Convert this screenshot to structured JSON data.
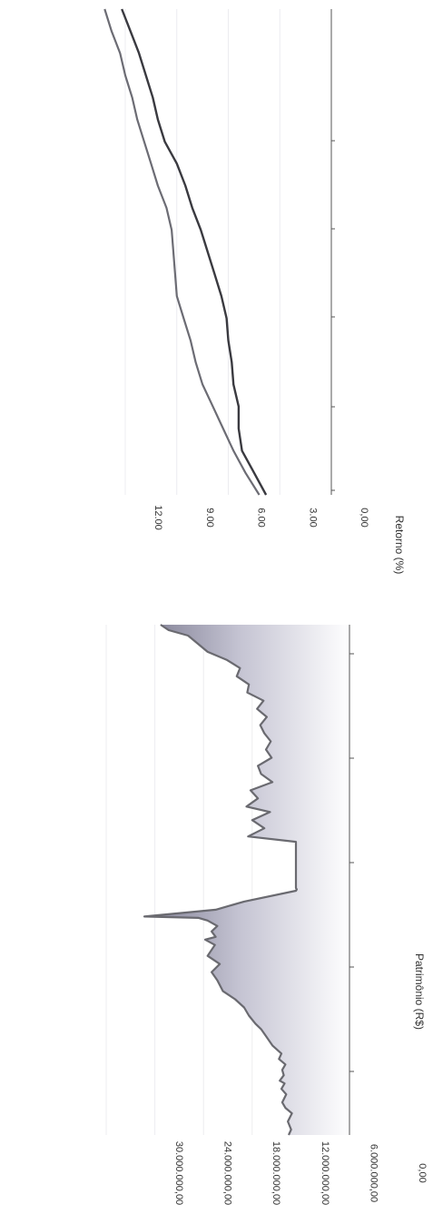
{
  "chart_data": [
    {
      "type": "area",
      "ylabel": "Patrimônio (R$)",
      "ylim": [
        0,
        30000000
      ],
      "yticks": [
        "0,00",
        "6.000.000,00",
        "12.000.000,00",
        "18.000.000,00",
        "24.000.000,00",
        "30.000.000,00"
      ],
      "ytick_values": [
        0,
        6000000,
        12000000,
        18000000,
        24000000,
        30000000
      ],
      "grid": true,
      "series": [
        {
          "x": [
            0,
            0.2,
            0.5,
            0.8,
            1.0,
            1.2,
            1.5,
            1.7,
            1.9,
            2.0,
            2.2,
            2.4,
            2.6,
            2.8,
            3.0,
            3.3,
            3.6,
            3.9,
            4.1,
            4.4,
            4.7,
            5.0,
            5.3,
            5.7,
            6.0,
            6.3,
            6.6,
            7.0,
            7.2,
            7.3,
            7.5,
            7.7,
            7.9,
            8.0,
            8.05,
            8.3,
            8.6,
            9.0,
            9.05,
            9.1,
            9.3,
            9.6,
            9.8,
            10.0,
            10.3,
            10.6,
            10.8,
            11.0,
            11.3,
            11.6,
            11.9,
            12.1,
            12.4,
            12.7,
            13.0,
            13.3,
            13.6,
            13.9,
            14.2,
            14.5,
            14.8,
            15.1,
            15.4,
            15.7,
            16.0,
            16.3,
            16.6,
            16.9,
            17.2,
            17.5,
            17.8,
            18.1,
            18.4,
            18.6,
            18.8
          ],
          "y": [
            7.5,
            7.2,
            7.6,
            7.1,
            7.9,
            8.3,
            7.8,
            8.4,
            8.0,
            8.6,
            8.1,
            8.3,
            7.9,
            8.7,
            8.4,
            9.5,
            10.2,
            10.9,
            11.6,
            12.4,
            13.0,
            14.1,
            15.6,
            16.3,
            17.0,
            16.0,
            17.5,
            16.6,
            17.8,
            16.5,
            17.0,
            16.3,
            17.5,
            18.6,
            25.3,
            16.5,
            13.0,
            6.6,
            6.5,
            6.6,
            6.6,
            6.6,
            6.6,
            6.6,
            6.6,
            6.6,
            6.6,
            12.5,
            10.5,
            12.0,
            9.8,
            12.7,
            11.3,
            12.2,
            9.5,
            10.9,
            11.3,
            9.6,
            10.3,
            9.7,
            10.5,
            11.0,
            10.2,
            11.4,
            10.6,
            12.6,
            12.4,
            13.9,
            13.5,
            15.1,
            17.5,
            18.7,
            19.9,
            22.3,
            23.3
          ]
        }
      ]
    },
    {
      "type": "line",
      "ylabel": "Retorno (%)",
      "ylim": [
        0,
        12
      ],
      "yticks": [
        "0,00",
        "3.00",
        "6.00",
        "9.00",
        "12.00"
      ],
      "ytick_values": [
        0,
        3,
        6,
        9,
        12
      ],
      "grid": true,
      "series": [
        {
          "x": [
            0,
            1,
            2,
            3,
            4,
            5,
            6,
            7,
            8,
            9,
            10,
            11,
            12,
            13,
            14,
            15,
            16,
            17,
            18,
            19,
            20,
            21,
            22
          ],
          "y": [
            4.2,
            5.0,
            5.7,
            6.3,
            6.9,
            7.5,
            7.9,
            8.2,
            8.6,
            9.0,
            9.1,
            9.2,
            9.3,
            9.6,
            10.1,
            10.5,
            10.9,
            11.3,
            11.6,
            12.0,
            12.3,
            12.8,
            13.2
          ]
        },
        {
          "x": [
            0,
            1,
            2,
            3,
            4,
            5,
            6,
            7,
            8,
            9,
            10,
            11,
            12,
            13,
            14,
            15,
            16,
            17,
            18,
            19,
            20,
            21,
            22
          ],
          "y": [
            3.8,
            4.5,
            5.2,
            5.4,
            5.4,
            5.7,
            5.8,
            6.0,
            6.1,
            6.4,
            6.8,
            7.2,
            7.6,
            8.1,
            8.5,
            9.0,
            9.7,
            10.1,
            10.4,
            10.8,
            11.2,
            11.7,
            12.2
          ]
        }
      ]
    }
  ]
}
